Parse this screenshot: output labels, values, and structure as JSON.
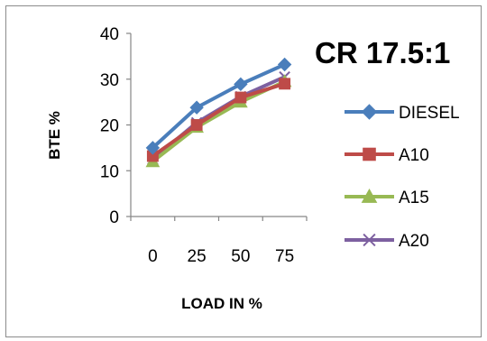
{
  "chart_data": {
    "type": "line",
    "title": "CR 17.5:1",
    "xlabel": "LOAD IN %",
    "ylabel": "BTE %",
    "categories": [
      "0",
      "25",
      "50",
      "75"
    ],
    "ylim": [
      0,
      40
    ],
    "yticks": [
      "0",
      "10",
      "20",
      "30",
      "40"
    ],
    "grid": false,
    "legend": "right",
    "series": [
      {
        "name": "DIESEL",
        "values": [
          15,
          23.8,
          28.9,
          33.2
        ],
        "color": "#4a7ebb",
        "marker": "diamond"
      },
      {
        "name": "A10",
        "values": [
          13.2,
          20,
          26,
          29
        ],
        "color": "#be4b48",
        "marker": "square"
      },
      {
        "name": "A15",
        "values": [
          12,
          19.5,
          25,
          29.5
        ],
        "color": "#98b954",
        "marker": "triangle"
      },
      {
        "name": "A20",
        "values": [
          12.5,
          20.5,
          26.2,
          30.5
        ],
        "color": "#7d60a0",
        "marker": "x"
      }
    ]
  }
}
